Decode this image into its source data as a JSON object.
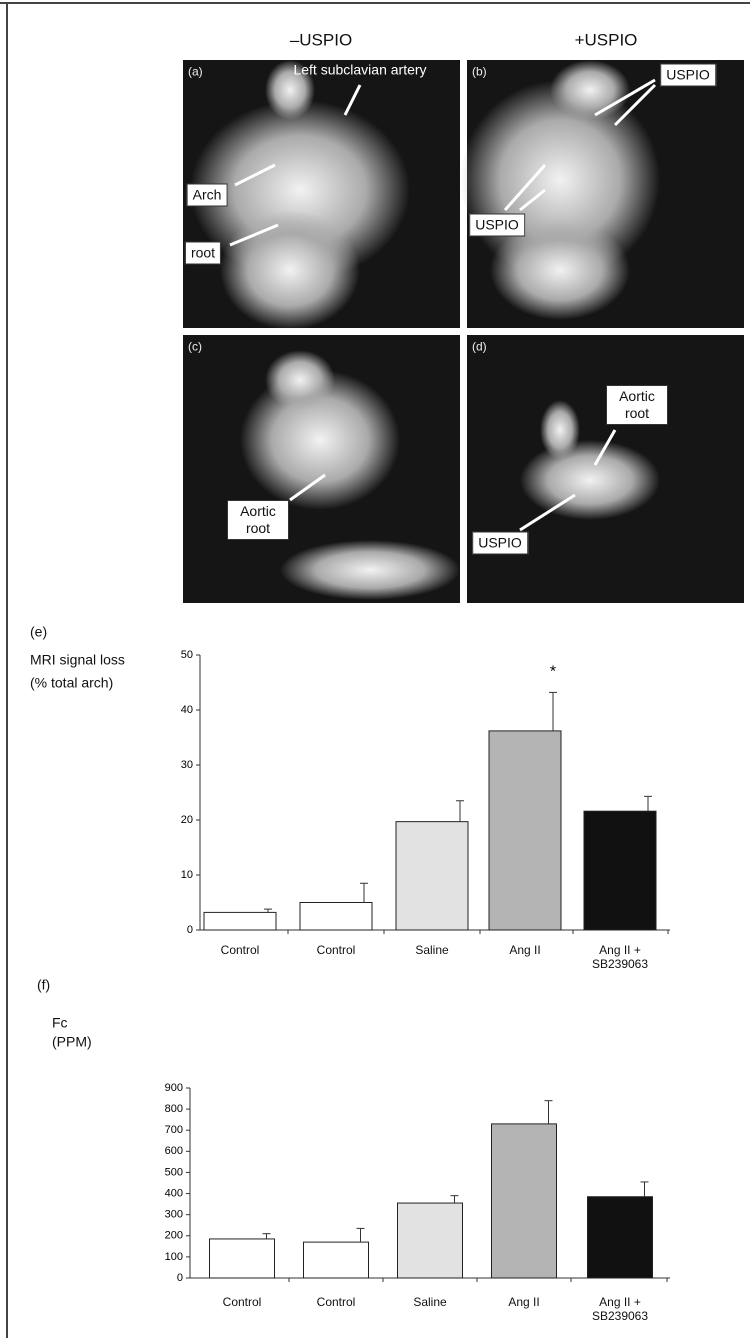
{
  "panels": {
    "column_titles": [
      "–USPIO",
      "+USPIO"
    ],
    "images": [
      {
        "letter": "(a)",
        "labels": [
          "Left subclavian artery",
          "Arch",
          "root"
        ]
      },
      {
        "letter": "(b)",
        "labels": [
          "USPIO",
          "USPIO"
        ]
      },
      {
        "letter": "(c)",
        "labels": [
          "Aortic root"
        ]
      },
      {
        "letter": "(d)",
        "labels": [
          "Aortic root",
          "USPIO"
        ]
      }
    ]
  },
  "chart_data": [
    {
      "type": "bar",
      "panel": "(e)",
      "y_label": [
        "MRI signal loss",
        "(% total arch)"
      ],
      "categories": [
        "Control",
        "Control",
        "Saline",
        "Ang II",
        "Ang II + SB239063"
      ],
      "values": [
        3.2,
        5,
        19.7,
        36.2,
        21.6
      ],
      "errors": [
        0.6,
        3.5,
        3.8,
        7,
        2.7
      ],
      "colors": [
        "#ffffff",
        "#ffffff",
        "#e2e2e2",
        "#b4b4b4",
        "#111111"
      ],
      "ylim": [
        0,
        50
      ],
      "yticks": [
        0,
        10,
        20,
        30,
        40,
        50
      ],
      "annotations": [
        {
          "text": "*",
          "category_index": 3
        }
      ]
    },
    {
      "type": "bar",
      "panel": "(f)",
      "y_label": [
        "Fc",
        "(PPM)"
      ],
      "categories": [
        "Control",
        "Control",
        "Saline",
        "Ang II",
        "Ang II + SB239063"
      ],
      "values": [
        185,
        170,
        355,
        730,
        385
      ],
      "errors": [
        25,
        65,
        35,
        110,
        70
      ],
      "colors": [
        "#ffffff",
        "#ffffff",
        "#e2e2e2",
        "#b4b4b4",
        "#111111"
      ],
      "ylim": [
        0,
        900
      ],
      "yticks": [
        0,
        100,
        200,
        300,
        400,
        500,
        600,
        700,
        800,
        900
      ]
    }
  ]
}
